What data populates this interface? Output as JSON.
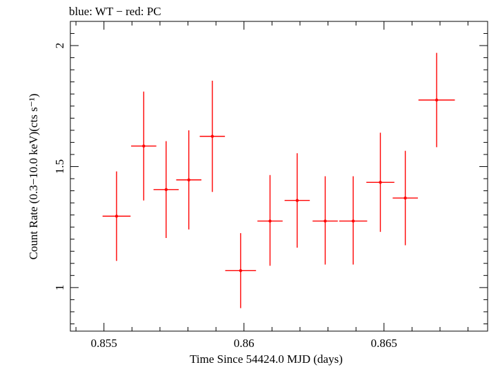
{
  "chart_data": {
    "type": "scatter",
    "title": "blue: WT − red: PC",
    "xlabel": "Time Since 54424.0 MJD (days)",
    "ylabel": "Count Rate (0.3−10.0 keV)(cts s⁻¹)",
    "xlim": [
      0.8538,
      0.8687
    ],
    "ylim": [
      0.82,
      2.1
    ],
    "xticks": [
      0.855,
      0.86,
      0.865
    ],
    "xtick_labels": [
      "0.855",
      "0.86",
      "0.865"
    ],
    "yticks": [
      1,
      1.5,
      2
    ],
    "ytick_labels": [
      "1",
      "1.5",
      "2"
    ],
    "grid": false,
    "series": [
      {
        "name": "PC",
        "color": "#ff0000",
        "points": [
          {
            "x": 0.85545,
            "y": 1.295,
            "xerr": 0.0005,
            "ylo": 1.11,
            "yhi": 1.48
          },
          {
            "x": 0.85642,
            "y": 1.585,
            "xerr": 0.00045,
            "ylo": 1.36,
            "yhi": 1.81
          },
          {
            "x": 0.85722,
            "y": 1.405,
            "xerr": 0.00045,
            "ylo": 1.205,
            "yhi": 1.605
          },
          {
            "x": 0.85803,
            "y": 1.445,
            "xerr": 0.00045,
            "ylo": 1.24,
            "yhi": 1.65
          },
          {
            "x": 0.85887,
            "y": 1.625,
            "xerr": 0.00045,
            "ylo": 1.395,
            "yhi": 1.855
          },
          {
            "x": 0.85988,
            "y": 1.07,
            "xerr": 0.00055,
            "ylo": 0.915,
            "yhi": 1.225
          },
          {
            "x": 0.86093,
            "y": 1.275,
            "xerr": 0.00045,
            "ylo": 1.09,
            "yhi": 1.465
          },
          {
            "x": 0.8619,
            "y": 1.36,
            "xerr": 0.00045,
            "ylo": 1.165,
            "yhi": 1.555
          },
          {
            "x": 0.8629,
            "y": 1.275,
            "xerr": 0.00045,
            "ylo": 1.095,
            "yhi": 1.46
          },
          {
            "x": 0.8639,
            "y": 1.275,
            "xerr": 0.0005,
            "ylo": 1.095,
            "yhi": 1.46
          },
          {
            "x": 0.86487,
            "y": 1.435,
            "xerr": 0.0005,
            "ylo": 1.23,
            "yhi": 1.64
          },
          {
            "x": 0.86576,
            "y": 1.37,
            "xerr": 0.00045,
            "ylo": 1.175,
            "yhi": 1.565
          },
          {
            "x": 0.86688,
            "y": 1.775,
            "xerr": 0.00065,
            "ylo": 1.58,
            "yhi": 1.97
          }
        ]
      }
    ]
  }
}
